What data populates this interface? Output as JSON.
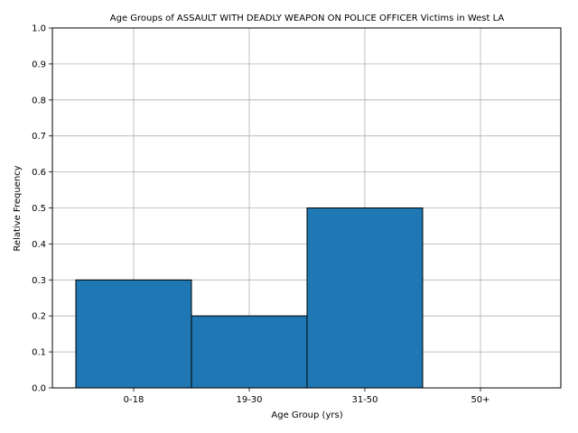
{
  "chart_data": {
    "type": "bar",
    "title": "Age Groups of ASSAULT WITH DEADLY WEAPON ON POLICE OFFICER Victims in West LA",
    "xlabel": "Age Group (yrs)",
    "ylabel": "Relative Frequency",
    "categories": [
      "0-18",
      "19-30",
      "31-50",
      "50+"
    ],
    "values": [
      0.3,
      0.2,
      0.5,
      0.0
    ],
    "ylim": [
      0,
      1.0
    ],
    "yticks": [
      "0.0",
      "0.1",
      "0.2",
      "0.3",
      "0.4",
      "0.5",
      "0.6",
      "0.7",
      "0.8",
      "0.9",
      "1.0"
    ],
    "grid": true,
    "bar_color": "#1f77b4",
    "edge_color": "#000000"
  }
}
